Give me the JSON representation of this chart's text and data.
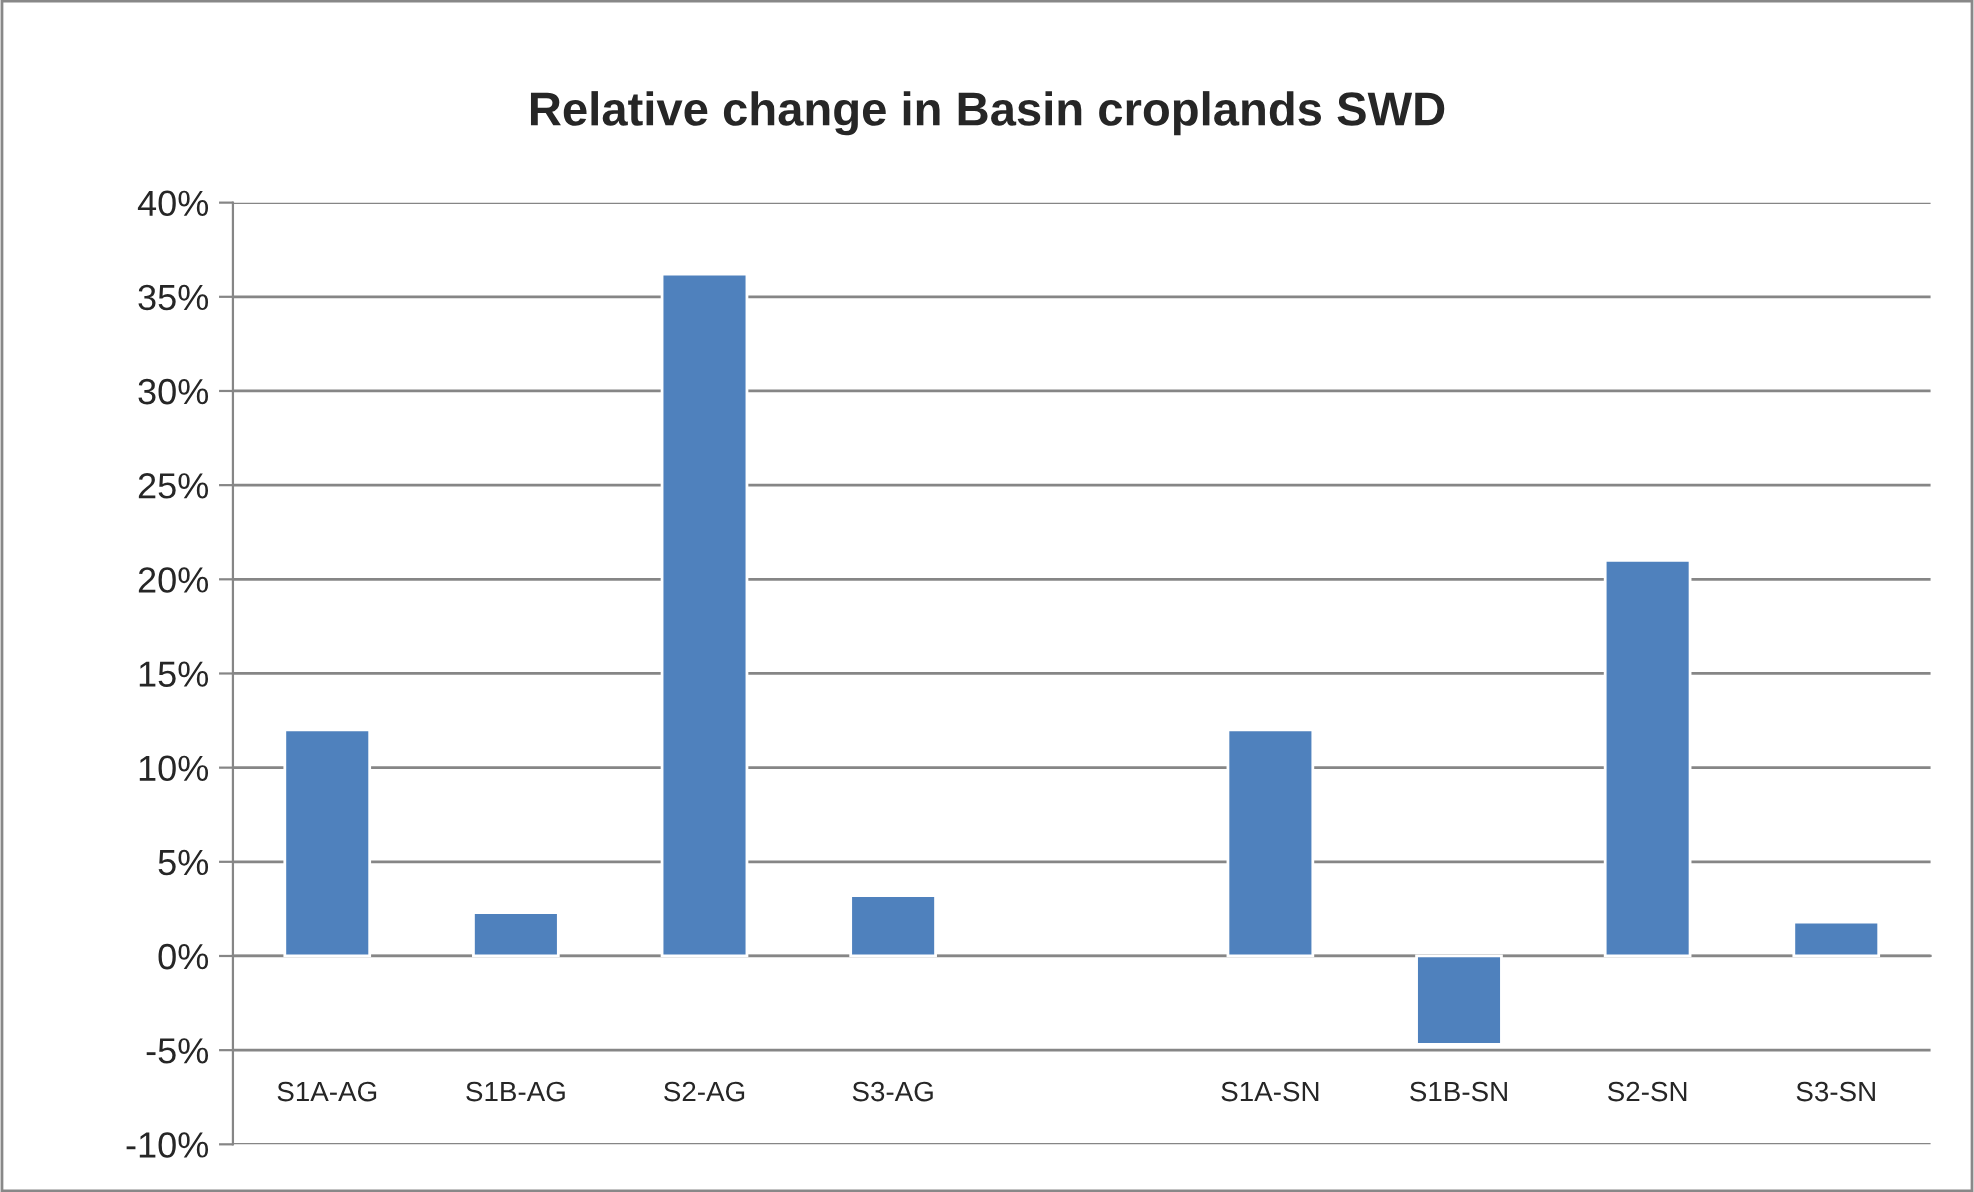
{
  "chart_data": {
    "type": "bar",
    "title": "Relative change in Basin croplands SWD",
    "categories": [
      "S1A-AG",
      "S1B-AG",
      "S2-AG",
      "S3-AG",
      null,
      "S1A-SN",
      "S1B-SN",
      "S2-SN",
      "S3-SN"
    ],
    "values": [
      12,
      2.3,
      36.2,
      3.2,
      null,
      12,
      -4.7,
      21,
      1.8
    ],
    "color": "#4f81bd",
    "ylim": [
      -10,
      40
    ],
    "yticks": [
      {
        "value": -10,
        "label": "-10%"
      },
      {
        "value": -5,
        "label": "-5%"
      },
      {
        "value": 0,
        "label": "0%"
      },
      {
        "value": 5,
        "label": "5%"
      },
      {
        "value": 10,
        "label": "10%"
      },
      {
        "value": 15,
        "label": "15%"
      },
      {
        "value": 20,
        "label": "20%"
      },
      {
        "value": 25,
        "label": "25%"
      },
      {
        "value": 30,
        "label": "30%"
      },
      {
        "value": 35,
        "label": "35%"
      },
      {
        "value": 40,
        "label": "40%"
      }
    ],
    "grid": "y",
    "legend": false
  }
}
